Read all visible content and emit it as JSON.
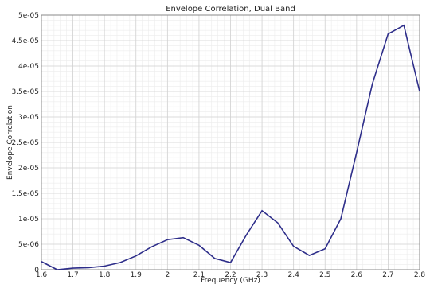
{
  "chart_data": {
    "type": "line",
    "title": "Envelope Correlation, Dual Band",
    "xlabel": "Frequency (GHz)",
    "ylabel": "Envelope Correlation",
    "xlim": [
      1.6,
      2.8
    ],
    "ylim": [
      0,
      5e-05
    ],
    "x_ticks": [
      1.6,
      1.7,
      1.8,
      1.9,
      2.0,
      2.1,
      2.2,
      2.3,
      2.4,
      2.5,
      2.6,
      2.7,
      2.8
    ],
    "x_tick_labels": [
      "1.6",
      "1.7",
      "1.8",
      "1.9",
      "2",
      "2.1",
      "2.2",
      "2.3",
      "2.4",
      "2.5",
      "2.6",
      "2.7",
      "2.8"
    ],
    "y_ticks": [
      0,
      5e-06,
      1e-05,
      1.5e-05,
      2e-05,
      2.5e-05,
      3e-05,
      3.5e-05,
      4e-05,
      4.5e-05,
      5e-05
    ],
    "y_tick_labels": [
      "0",
      "5e-06",
      "1e-05",
      "1.5e-05",
      "2e-05",
      "2.5e-05",
      "3e-05",
      "3.5e-05",
      "4e-05",
      "4.5e-05",
      "5e-05"
    ],
    "grid": true,
    "line_color": "#2e2e8a",
    "series": [
      {
        "x": [
          1.6,
          1.65,
          1.7,
          1.75,
          1.8,
          1.85,
          1.9,
          1.95,
          2.0,
          2.05,
          2.1,
          2.15,
          2.2,
          2.25,
          2.3,
          2.35,
          2.4,
          2.45,
          2.5,
          2.55,
          2.6,
          2.65,
          2.7,
          2.75,
          2.8
        ],
        "values": [
          1.6e-06,
          0.0,
          3e-07,
          4e-07,
          7e-07,
          1.4e-06,
          2.7e-06,
          4.5e-06,
          5.9e-06,
          6.3e-06,
          4.8e-06,
          2.2e-06,
          1.4e-06,
          6.8e-06,
          1.16e-05,
          9.2e-06,
          4.6e-06,
          2.8e-06,
          4.1e-06,
          1e-05,
          2.3e-05,
          3.65e-05,
          4.63e-05,
          4.8e-05,
          3.5e-05
        ]
      }
    ]
  }
}
